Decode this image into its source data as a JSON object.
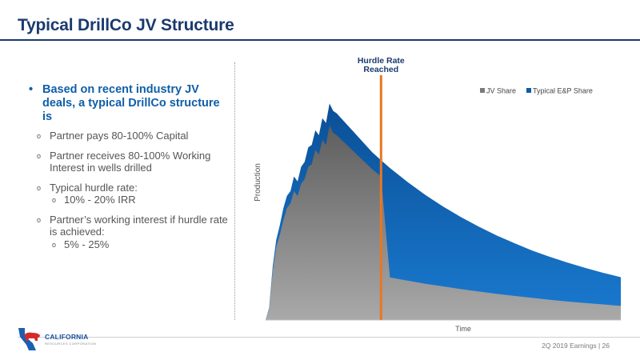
{
  "slide": {
    "title": "Typical DrillCo JV Structure",
    "footer": "2Q 2019 Earnings | 26"
  },
  "logo": {
    "name": "CALIFORNIA",
    "subtitle": "RESOURCES CORPORATION"
  },
  "bullets": {
    "main": "Based on recent industry JV deals, a typical DrillCo structure is",
    "items": [
      {
        "text": "Partner pays 80-100% Capital",
        "sub": null
      },
      {
        "text": "Partner receives 80-100% Working Interest in wells drilled",
        "sub": null
      },
      {
        "text": "Typical hurdle rate:",
        "sub": "10% - 20% IRR"
      },
      {
        "text": "Partner’s working interest if hurdle rate is achieved:",
        "sub": "5% - 25%"
      }
    ]
  },
  "chart_data": {
    "type": "area",
    "xlabel": "Time",
    "ylabel": "Production",
    "xlim": [
      0,
      100
    ],
    "ylim": [
      0,
      100
    ],
    "legend": {
      "position": "top-right"
    },
    "series": [
      {
        "name": "JV Share",
        "color": "#7a7a7a"
      },
      {
        "name": "Typical E&P Share",
        "color": "#0f5aa6"
      }
    ],
    "annotation": {
      "label": "Hurdle Rate Reached",
      "x": 32.5,
      "color": "#e87722"
    },
    "total_curve": {
      "x": [
        0,
        1,
        2,
        3,
        4,
        5,
        6,
        7,
        8,
        9,
        10,
        11,
        12,
        13,
        14,
        15,
        16,
        17,
        18,
        19,
        20,
        25,
        30,
        32.5,
        35,
        40,
        45,
        50,
        55,
        60,
        65,
        70,
        75,
        80,
        85,
        90,
        95,
        100
      ],
      "y": [
        0,
        5,
        22,
        33,
        39,
        46,
        51,
        53,
        59,
        57,
        63,
        65,
        71,
        72,
        78,
        76,
        83,
        81,
        89,
        86,
        85,
        77,
        69,
        65.7,
        62.5,
        56.7,
        51.4,
        46.6,
        42.3,
        38.4,
        34.8,
        31.6,
        28.6,
        26.0,
        23.6,
        21.4,
        19.4,
        17.6
      ]
    },
    "jv_share_curve": {
      "x": [
        0,
        1,
        2,
        3,
        4,
        5,
        6,
        7,
        8,
        9,
        10,
        11,
        12,
        13,
        14,
        15,
        16,
        17,
        18,
        19,
        20,
        25,
        30,
        32.5,
        35,
        40,
        45,
        50,
        55,
        60,
        65,
        70,
        75,
        80,
        85,
        90,
        95,
        100
      ],
      "y": [
        0,
        4.5,
        20,
        30,
        35,
        41,
        46,
        48,
        53,
        51,
        56,
        58,
        63,
        64,
        70,
        68,
        74,
        72,
        80,
        77,
        76,
        69,
        62,
        59,
        17.5,
        16.2,
        14.9,
        13.8,
        12.7,
        11.7,
        10.8,
        9.9,
        9.1,
        8.3,
        7.6,
        7.0,
        6.4,
        5.8
      ]
    }
  }
}
